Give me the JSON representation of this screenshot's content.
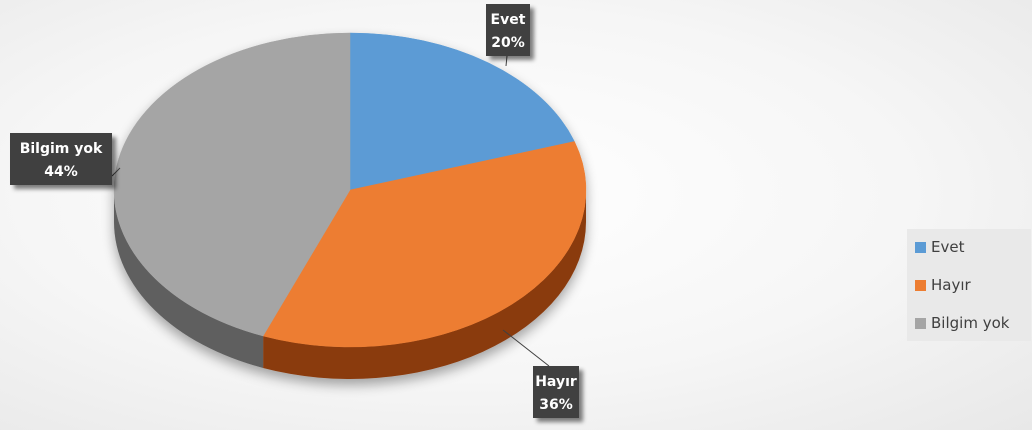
{
  "chart_data": {
    "type": "pie",
    "categories": [
      "Evet",
      "Hayır",
      "Bilgim yok"
    ],
    "values": [
      20,
      36,
      44
    ],
    "value_labels": [
      "20%",
      "36%",
      "44%"
    ],
    "colors": [
      "#5b9bd5",
      "#ed7d31",
      "#a5a5a5"
    ],
    "side_colors": [
      "#2e5f8a",
      "#8a3b10",
      "#5f5f5f"
    ],
    "legend_position": "right",
    "style": "3d",
    "data_label_style": "callout"
  }
}
